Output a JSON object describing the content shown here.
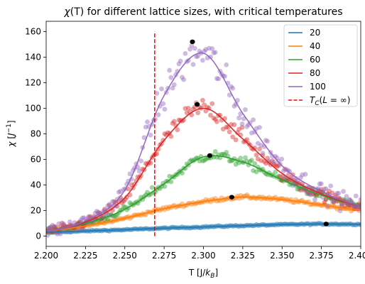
{
  "chart_data": {
    "type": "scatter",
    "title": "χ(T) for different lattice sizes, with critical temperatures",
    "xlabel": "T [J/k_B]",
    "ylabel": "χ [J⁻¹]",
    "xlim": [
      2.2,
      2.4
    ],
    "ylim": [
      -8,
      168
    ],
    "xticks": [
      2.2,
      2.225,
      2.25,
      2.275,
      2.3,
      2.325,
      2.35,
      2.375,
      2.4
    ],
    "xtick_labels": [
      "2.200",
      "2.225",
      "2.250",
      "2.275",
      "2.300",
      "2.325",
      "2.350",
      "2.375",
      "2.400"
    ],
    "yticks": [
      0,
      20,
      40,
      60,
      80,
      100,
      120,
      140,
      160
    ],
    "ytick_labels": [
      "0",
      "20",
      "40",
      "60",
      "80",
      "100",
      "120",
      "140",
      "160"
    ],
    "grid": false,
    "legend_position": "top-right",
    "series": [
      {
        "name": "20",
        "color": "#1f77b4",
        "fit_x": [
          2.2,
          2.225,
          2.25,
          2.275,
          2.3,
          2.325,
          2.35,
          2.375,
          2.4
        ],
        "fit_y": [
          3.0,
          4.0,
          5.0,
          6.2,
          7.2,
          8.2,
          9.0,
          9.5,
          9.3
        ],
        "peak": [
          2.378,
          9.5
        ],
        "noise": 0.6
      },
      {
        "name": "40",
        "color": "#ff7f0e",
        "fit_x": [
          2.2,
          2.225,
          2.25,
          2.275,
          2.3,
          2.325,
          2.35,
          2.375,
          2.4
        ],
        "fit_y": [
          4.0,
          8.0,
          14.0,
          21.5,
          27.0,
          30.5,
          28.5,
          24.5,
          20.5
        ],
        "peak": [
          2.318,
          30.5
        ],
        "noise": 1.2
      },
      {
        "name": "60",
        "color": "#2ca02c",
        "fit_x": [
          2.2,
          2.225,
          2.25,
          2.275,
          2.3,
          2.325,
          2.35,
          2.375,
          2.4
        ],
        "fit_y": [
          4.0,
          10.0,
          21.0,
          41.0,
          62.0,
          58.0,
          44.0,
          32.0,
          24.0
        ],
        "peak": [
          2.304,
          63.0
        ],
        "noise": 2.5
      },
      {
        "name": "80",
        "color": "#d62728",
        "fit_x": [
          2.2,
          2.225,
          2.25,
          2.275,
          2.3,
          2.325,
          2.35,
          2.375,
          2.4
        ],
        "fit_y": [
          4.0,
          11.0,
          30.0,
          75.0,
          100.0,
          76.0,
          49.0,
          33.0,
          24.0
        ],
        "peak": [
          2.296,
          103.0
        ],
        "noise": 4.0
      },
      {
        "name": "100",
        "color": "#9467bd",
        "fit_x": [
          2.2,
          2.225,
          2.25,
          2.275,
          2.3,
          2.325,
          2.35,
          2.375,
          2.4
        ],
        "fit_y": [
          4.0,
          12.0,
          36.0,
          110.0,
          143.0,
          96.0,
          55.0,
          35.0,
          24.0
        ],
        "peak": [
          2.293,
          152.0
        ],
        "noise": 6.0
      }
    ],
    "vline": {
      "label": "T_C(L=∞)",
      "x": 2.269,
      "y_range": [
        0,
        160
      ],
      "color": "#ff0000"
    }
  }
}
